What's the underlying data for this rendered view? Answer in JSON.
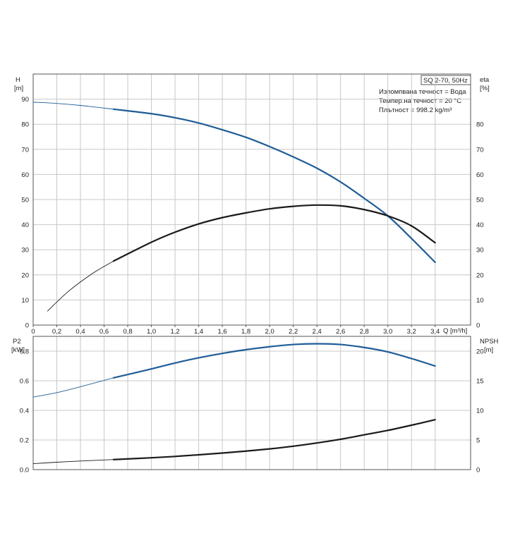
{
  "chart_data": [
    {
      "type": "line",
      "model_label": "SQ 2-70, 50Hz",
      "info_lines": [
        "Изпомпвана течност = Вода",
        "Темпер.на течност = 20 °C",
        "Плътност = 998.2 kg/m³"
      ],
      "xlabel": "Q [m³/h]",
      "ylabel_left": "H",
      "ylabel_left_unit": "[m]",
      "ylabel_right": "eta",
      "ylabel_right_unit": "[%]",
      "xlim": [
        0,
        3.7
      ],
      "ylim": [
        0,
        100
      ],
      "x_ticks": [
        "0",
        "0,2",
        "0,4",
        "0,6",
        "0,8",
        "1,0",
        "1,2",
        "1,4",
        "1,6",
        "1,8",
        "2,0",
        "2,2",
        "2,4",
        "2,6",
        "2,8",
        "3,0",
        "3,2",
        "3,4"
      ],
      "y_ticks_left": [
        "0",
        "10",
        "20",
        "30",
        "40",
        "50",
        "60",
        "70",
        "80",
        "90"
      ],
      "y_ticks_right": [
        "0",
        "10",
        "20",
        "30",
        "40",
        "50",
        "60",
        "70",
        "80"
      ],
      "grid": true,
      "series": [
        {
          "color": "#1f5d97",
          "x": [
            0,
            0.2,
            0.4,
            0.68,
            1.0,
            1.2,
            1.4,
            1.6,
            1.8,
            2.0,
            2.2,
            2.4,
            2.6,
            2.8,
            3.0,
            3.2,
            3.4
          ],
          "y": [
            88.8,
            88.3,
            87.5,
            86.0,
            84.2,
            82.6,
            80.5,
            77.8,
            74.8,
            71.1,
            67.0,
            62.5,
            57.0,
            50.5,
            43.5,
            34.5,
            25.0
          ],
          "thin_until": 0.68
        },
        {
          "color": "#1a1a1a",
          "x": [
            0.12,
            0.3,
            0.5,
            0.68,
            1.0,
            1.2,
            1.4,
            1.6,
            1.8,
            2.0,
            2.2,
            2.4,
            2.6,
            2.8,
            3.0,
            3.2,
            3.4
          ],
          "y": [
            5.5,
            13.5,
            20.5,
            25.5,
            33.0,
            37.0,
            40.3,
            42.8,
            44.7,
            46.3,
            47.3,
            47.8,
            47.5,
            46.0,
            43.5,
            39.5,
            32.8
          ],
          "thin_until": 0.68
        }
      ]
    },
    {
      "type": "line",
      "xlim": [
        0,
        3.7
      ],
      "ylabel_left": "P2",
      "ylabel_left_unit": "[kW]",
      "ylabel_right": "NPSH",
      "ylabel_right_unit": "[m]",
      "ylim_left": [
        0,
        0.9
      ],
      "ylim_right": [
        0,
        22.5
      ],
      "y_ticks_left": [
        "0.0",
        "0.2",
        "0.4",
        "0.6",
        "0.8"
      ],
      "y_ticks_right": [
        "0",
        "5",
        "10",
        "15",
        "20"
      ],
      "grid": true,
      "series": [
        {
          "color": "#1f5d97",
          "axis": "left",
          "x": [
            0,
            0.2,
            0.4,
            0.68,
            1.0,
            1.2,
            1.4,
            1.6,
            1.8,
            2.0,
            2.2,
            2.4,
            2.6,
            2.8,
            3.0,
            3.2,
            3.4
          ],
          "y": [
            0.49,
            0.52,
            0.56,
            0.62,
            0.68,
            0.72,
            0.755,
            0.785,
            0.81,
            0.83,
            0.845,
            0.85,
            0.845,
            0.825,
            0.795,
            0.75,
            0.7
          ],
          "thin_until": 0.68
        },
        {
          "color": "#1a1a1a",
          "axis": "left",
          "x": [
            0,
            0.2,
            0.4,
            0.68,
            1.0,
            1.2,
            1.4,
            1.6,
            1.8,
            2.0,
            2.2,
            2.4,
            2.6,
            2.8,
            3.0,
            3.2,
            3.4
          ],
          "y": [
            0.04,
            0.05,
            0.058,
            0.068,
            0.08,
            0.089,
            0.1,
            0.112,
            0.125,
            0.14,
            0.158,
            0.18,
            0.205,
            0.235,
            0.265,
            0.3,
            0.337
          ],
          "thin_until": 0.68
        }
      ]
    }
  ]
}
